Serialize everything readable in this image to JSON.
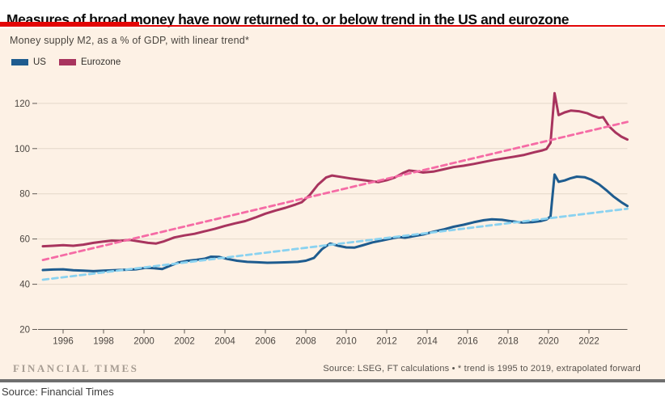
{
  "header": {
    "title": "Measures of broad money have now returned to, or below trend in the US and eurozone"
  },
  "chart": {
    "subtitle": "Money supply M2, as a % of GDP, with linear trend*",
    "legend": [
      {
        "label": "US",
        "color": "#1e5c8f"
      },
      {
        "label": "Eurozone",
        "color": "#a8345e"
      }
    ],
    "watermark": "FINANCIAL TIMES",
    "source_note": "Source: LSEG, FT calculations • * trend is 1995 to 2019, extrapolated forward"
  },
  "footer": {
    "source": "Source: Financial Times"
  },
  "chart_data": {
    "type": "line",
    "title": "Measures of broad money have now returned to, or below trend in the US and eurozone",
    "subtitle": "Money supply M2, as a % of GDP, with linear trend*",
    "xlabel": "",
    "ylabel": "",
    "xlim": [
      1995,
      2024.3
    ],
    "ylim": [
      20,
      128
    ],
    "x_ticks": [
      1996,
      1998,
      2000,
      2002,
      2004,
      2006,
      2008,
      2010,
      2012,
      2014,
      2016,
      2018,
      2020,
      2022
    ],
    "y_ticks": [
      20,
      40,
      60,
      80,
      100,
      120
    ],
    "grid": true,
    "legend_position": "top-left",
    "series": [
      {
        "name": "Eurozone",
        "style": "solid",
        "color": "#a8345e",
        "points": [
          [
            1995.0,
            56.8
          ],
          [
            1995.5,
            57.0
          ],
          [
            1996.0,
            57.3
          ],
          [
            1996.5,
            57.0
          ],
          [
            1997.0,
            57.5
          ],
          [
            1997.5,
            58.3
          ],
          [
            1998.0,
            58.9
          ],
          [
            1998.4,
            59.3
          ],
          [
            1998.8,
            59.2
          ],
          [
            1999.3,
            59.6
          ],
          [
            1999.7,
            59.0
          ],
          [
            2000.2,
            58.3
          ],
          [
            2000.6,
            58.0
          ],
          [
            2001.0,
            59.0
          ],
          [
            2001.5,
            60.7
          ],
          [
            2002.0,
            61.6
          ],
          [
            2002.5,
            62.3
          ],
          [
            2003.0,
            63.4
          ],
          [
            2003.5,
            64.5
          ],
          [
            2004.0,
            65.8
          ],
          [
            2004.5,
            66.9
          ],
          [
            2005.0,
            67.9
          ],
          [
            2005.5,
            69.5
          ],
          [
            2006.0,
            71.2
          ],
          [
            2006.5,
            72.6
          ],
          [
            2007.0,
            73.8
          ],
          [
            2007.5,
            75.3
          ],
          [
            2007.8,
            76.3
          ],
          [
            2008.2,
            79.5
          ],
          [
            2008.6,
            84.0
          ],
          [
            2009.0,
            87.2
          ],
          [
            2009.3,
            88.1
          ],
          [
            2009.7,
            87.5
          ],
          [
            2010.2,
            86.8
          ],
          [
            2010.7,
            86.2
          ],
          [
            2011.2,
            85.6
          ],
          [
            2011.6,
            85.2
          ],
          [
            2012.0,
            86.0
          ],
          [
            2012.4,
            87.2
          ],
          [
            2012.8,
            89.2
          ],
          [
            2013.1,
            90.3
          ],
          [
            2013.5,
            89.9
          ],
          [
            2013.8,
            89.4
          ],
          [
            2014.3,
            89.8
          ],
          [
            2014.8,
            90.8
          ],
          [
            2015.3,
            91.8
          ],
          [
            2015.8,
            92.4
          ],
          [
            2016.3,
            93.2
          ],
          [
            2016.8,
            94.1
          ],
          [
            2017.3,
            95.0
          ],
          [
            2017.8,
            95.7
          ],
          [
            2018.3,
            96.4
          ],
          [
            2018.8,
            97.2
          ],
          [
            2019.3,
            98.4
          ],
          [
            2019.7,
            99.2
          ],
          [
            2019.9,
            99.8
          ],
          [
            2020.1,
            102.5
          ],
          [
            2020.3,
            124.5
          ],
          [
            2020.5,
            114.8
          ],
          [
            2020.8,
            116.0
          ],
          [
            2021.1,
            116.8
          ],
          [
            2021.5,
            116.5
          ],
          [
            2021.9,
            115.7
          ],
          [
            2022.2,
            114.5
          ],
          [
            2022.5,
            113.6
          ],
          [
            2022.7,
            113.9
          ],
          [
            2023.0,
            109.8
          ],
          [
            2023.3,
            107.2
          ],
          [
            2023.6,
            105.3
          ],
          [
            2023.9,
            104.0
          ]
        ]
      },
      {
        "name": "US",
        "style": "solid",
        "color": "#1e5c8f",
        "points": [
          [
            1995.0,
            46.3
          ],
          [
            1995.5,
            46.5
          ],
          [
            1996.0,
            46.6
          ],
          [
            1996.5,
            46.2
          ],
          [
            1997.0,
            46.0
          ],
          [
            1997.5,
            45.8
          ],
          [
            1998.0,
            46.0
          ],
          [
            1998.5,
            46.2
          ],
          [
            1999.0,
            46.4
          ],
          [
            1999.6,
            46.6
          ],
          [
            2000.1,
            47.3
          ],
          [
            2000.5,
            47.1
          ],
          [
            2000.9,
            46.7
          ],
          [
            2001.3,
            48.2
          ],
          [
            2001.7,
            49.6
          ],
          [
            2002.1,
            50.3
          ],
          [
            2002.6,
            50.8
          ],
          [
            2003.0,
            51.3
          ],
          [
            2003.3,
            52.2
          ],
          [
            2003.7,
            52.1
          ],
          [
            2004.1,
            51.2
          ],
          [
            2004.6,
            50.4
          ],
          [
            2005.1,
            49.9
          ],
          [
            2005.6,
            49.7
          ],
          [
            2006.1,
            49.5
          ],
          [
            2006.6,
            49.6
          ],
          [
            2007.1,
            49.7
          ],
          [
            2007.6,
            49.9
          ],
          [
            2008.0,
            50.4
          ],
          [
            2008.4,
            51.6
          ],
          [
            2008.8,
            55.5
          ],
          [
            2009.2,
            58.0
          ],
          [
            2009.6,
            57.0
          ],
          [
            2010.0,
            56.3
          ],
          [
            2010.4,
            56.2
          ],
          [
            2010.8,
            57.2
          ],
          [
            2011.3,
            58.5
          ],
          [
            2011.8,
            59.4
          ],
          [
            2012.2,
            60.2
          ],
          [
            2012.6,
            60.9
          ],
          [
            2012.9,
            60.6
          ],
          [
            2013.3,
            61.2
          ],
          [
            2013.8,
            62.0
          ],
          [
            2014.3,
            63.2
          ],
          [
            2014.8,
            64.2
          ],
          [
            2015.3,
            65.4
          ],
          [
            2015.8,
            66.3
          ],
          [
            2016.3,
            67.4
          ],
          [
            2016.8,
            68.3
          ],
          [
            2017.2,
            68.7
          ],
          [
            2017.7,
            68.5
          ],
          [
            2018.2,
            67.8
          ],
          [
            2018.7,
            67.3
          ],
          [
            2019.2,
            67.5
          ],
          [
            2019.6,
            67.9
          ],
          [
            2019.9,
            68.6
          ],
          [
            2020.1,
            70.0
          ],
          [
            2020.3,
            88.5
          ],
          [
            2020.5,
            85.3
          ],
          [
            2020.8,
            85.9
          ],
          [
            2021.1,
            86.9
          ],
          [
            2021.4,
            87.6
          ],
          [
            2021.8,
            87.3
          ],
          [
            2022.1,
            86.3
          ],
          [
            2022.5,
            84.2
          ],
          [
            2022.9,
            81.3
          ],
          [
            2023.2,
            78.9
          ],
          [
            2023.6,
            76.3
          ],
          [
            2023.9,
            74.6
          ]
        ]
      },
      {
        "name": "Eurozone trend",
        "style": "dashed",
        "color": "#f56ba5",
        "points": [
          [
            1995.0,
            50.7
          ],
          [
            2023.9,
            111.8
          ]
        ]
      },
      {
        "name": "US trend",
        "style": "dashed",
        "color": "#8ad2f0",
        "points": [
          [
            1995.0,
            42.0
          ],
          [
            2023.9,
            73.4
          ]
        ]
      }
    ]
  }
}
